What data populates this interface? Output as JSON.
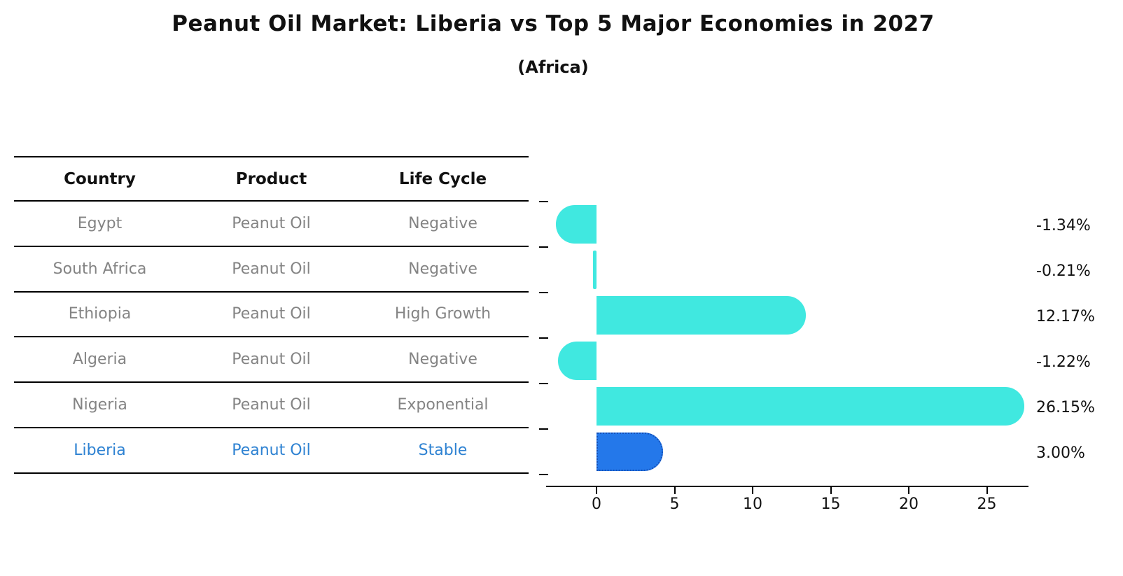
{
  "title": "Peanut Oil Market: Liberia vs Top 5 Major Economies in 2027",
  "subtitle": "(Africa)",
  "table": {
    "headers": [
      "Country",
      "Product",
      "Life Cycle"
    ],
    "rows": [
      {
        "country": "Egypt",
        "product": "Peanut Oil",
        "life_cycle": "Negative",
        "highlight": false
      },
      {
        "country": "South Africa",
        "product": "Peanut Oil",
        "life_cycle": "Negative",
        "highlight": false
      },
      {
        "country": "Ethiopia",
        "product": "Peanut Oil",
        "life_cycle": "High Growth",
        "highlight": false
      },
      {
        "country": "Algeria",
        "product": "Peanut Oil",
        "life_cycle": "Negative",
        "highlight": false
      },
      {
        "country": "Nigeria",
        "product": "Peanut Oil",
        "life_cycle": "Exponential",
        "highlight": false
      },
      {
        "country": "Liberia",
        "product": "Peanut Oil",
        "life_cycle": "Stable",
        "highlight": true
      }
    ]
  },
  "chart_data": {
    "type": "bar",
    "orientation": "horizontal",
    "title": "Peanut Oil Market: Liberia vs Top 5 Major Economies in 2027 (Africa)",
    "categories": [
      "Egypt",
      "South Africa",
      "Ethiopia",
      "Algeria",
      "Nigeria",
      "Liberia"
    ],
    "values": [
      -1.34,
      -0.21,
      12.17,
      -1.22,
      26.15,
      3.0
    ],
    "value_labels": [
      "-1.34%",
      "-0.21%",
      "12.17%",
      "-1.22%",
      "26.15%",
      "3.00%"
    ],
    "x_ticks": [
      0,
      5,
      10,
      15,
      20,
      25
    ],
    "xlim": [
      -3.5,
      27.7
    ],
    "grid": false,
    "legend": "none",
    "highlight_index": 5,
    "highlight_style": "dotted-border"
  },
  "colors": {
    "bar_default": "#40e8e0",
    "bar_highlight": "#2478ea",
    "bar_highlight_border": "#1450b8",
    "table_text": "#848484",
    "table_highlight_text": "#2e82d2",
    "axis": "#000000",
    "title_text": "#111111"
  }
}
